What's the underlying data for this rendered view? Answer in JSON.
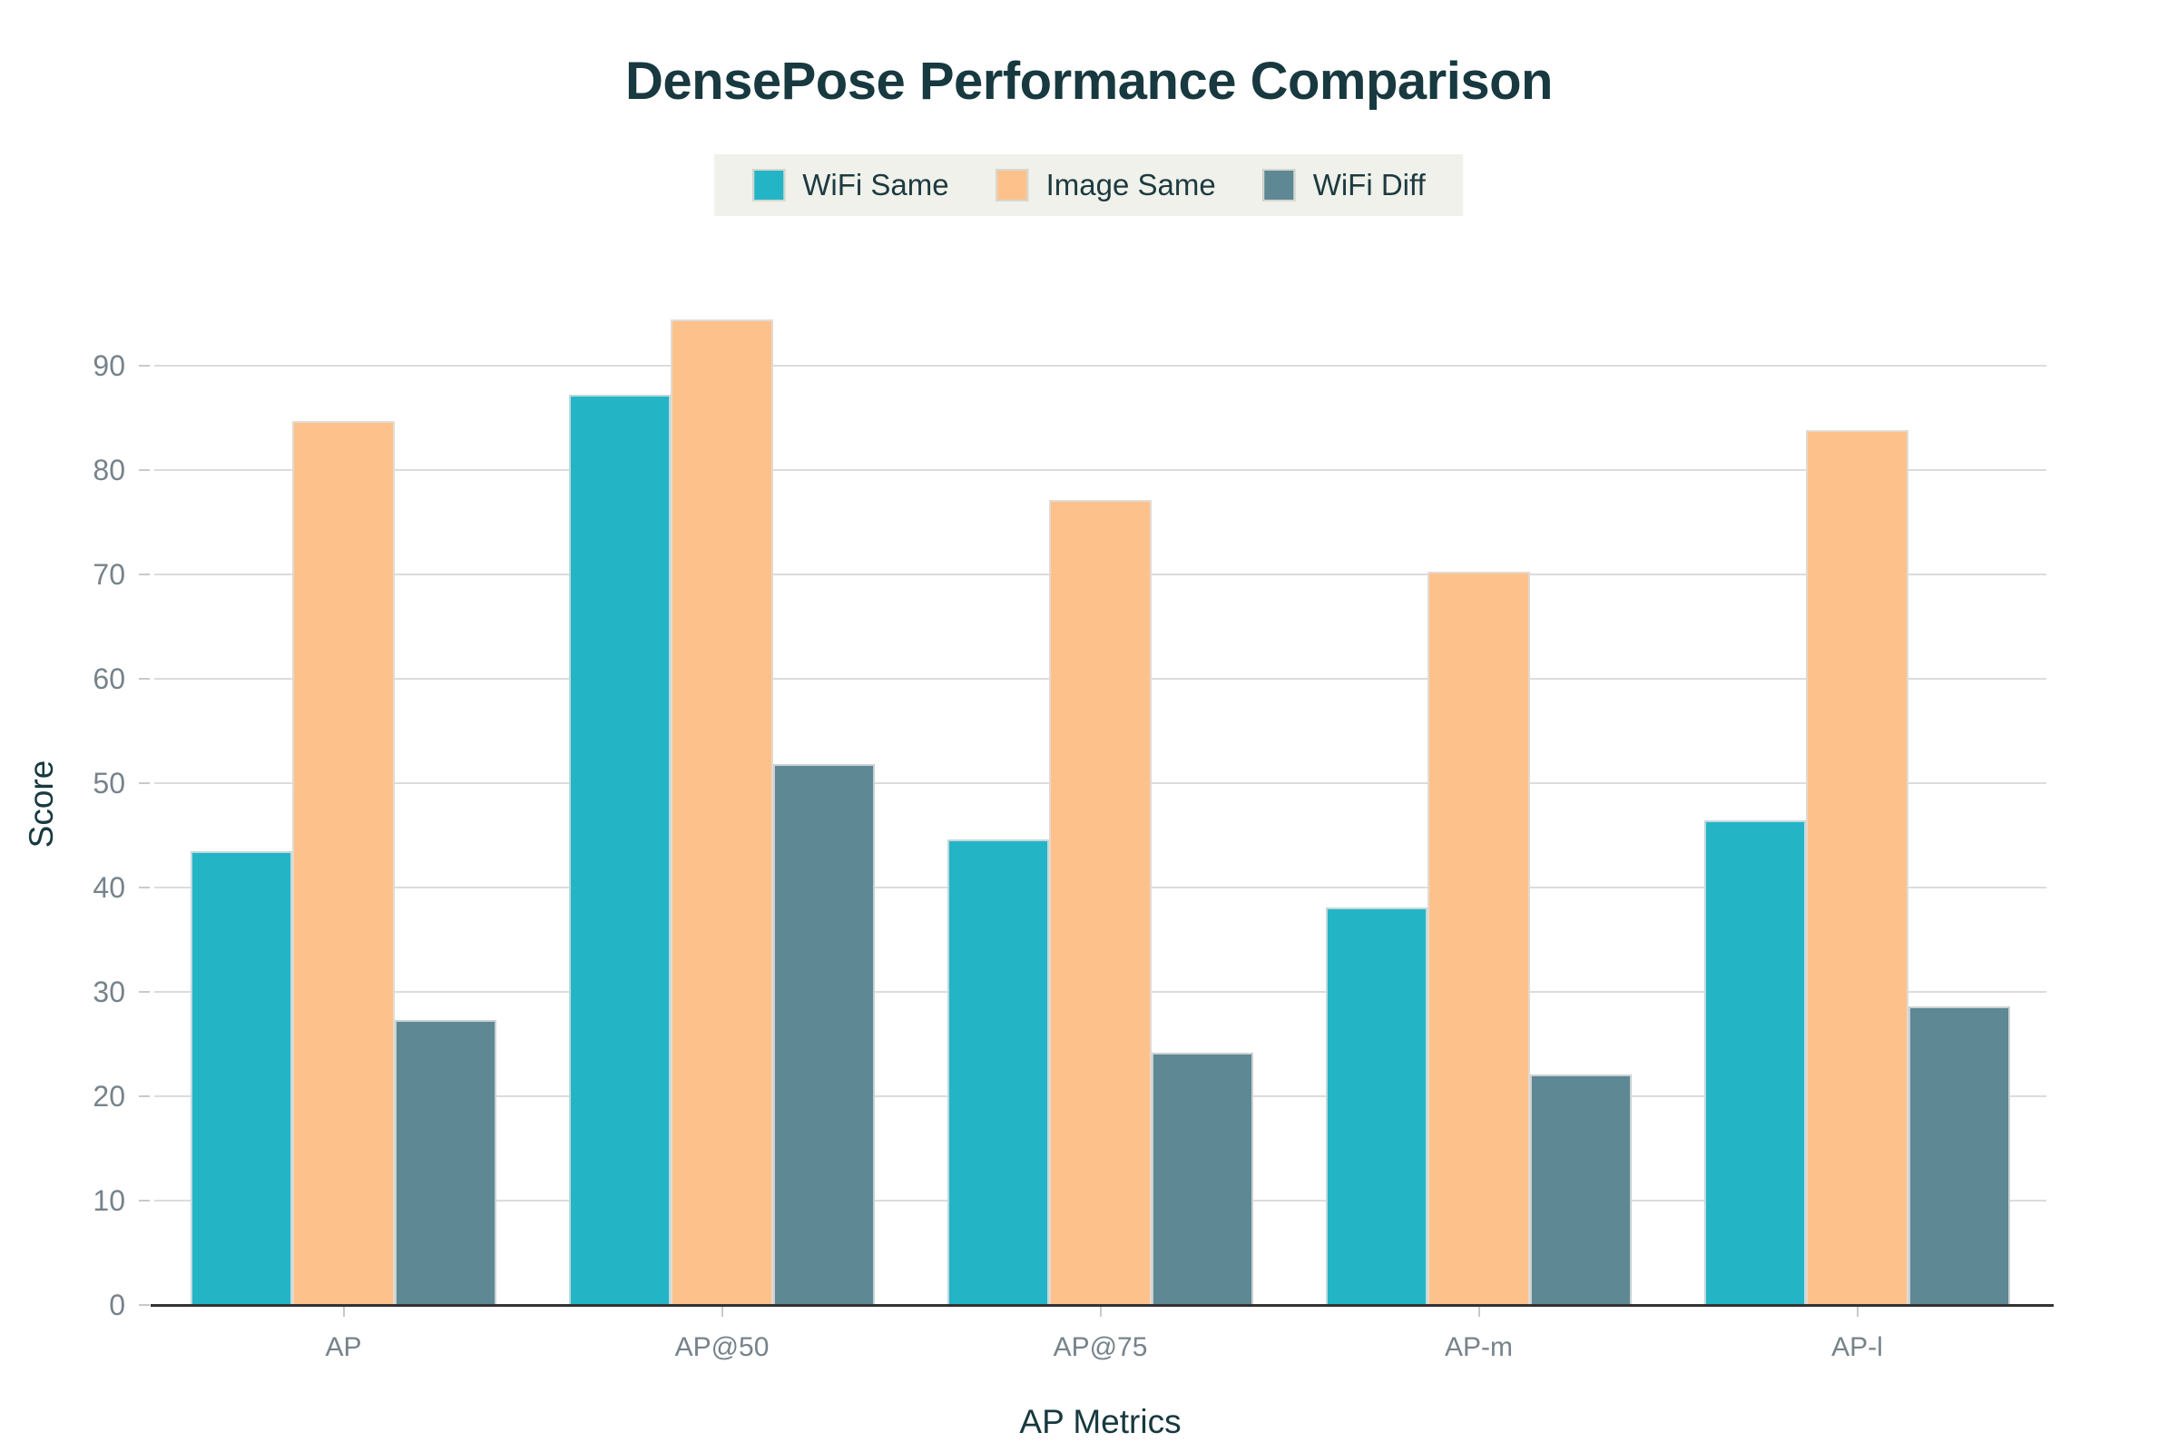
{
  "chart_data": {
    "type": "bar",
    "title": "DensePose Performance Comparison",
    "xlabel": "AP Metrics",
    "ylabel": "Score",
    "categories": [
      "AP",
      "AP@50",
      "AP@75",
      "AP-m",
      "AP-l"
    ],
    "series": [
      {
        "name": "WiFi Same",
        "color": "#23b5c6",
        "values": [
          43.5,
          87.2,
          44.6,
          38.1,
          46.4
        ]
      },
      {
        "name": "Image Same",
        "color": "#fdc28c",
        "values": [
          84.7,
          94.4,
          77.1,
          70.3,
          83.8
        ]
      },
      {
        "name": "WiFi Diff",
        "color": "#5d8894",
        "values": [
          27.3,
          51.8,
          24.2,
          22.1,
          28.6
        ]
      }
    ],
    "ylim": [
      0,
      96
    ],
    "yticks": [
      0,
      10,
      20,
      30,
      40,
      50,
      60,
      70,
      80,
      90
    ],
    "grid": true,
    "legend_position": "top",
    "colors": {
      "title_text": "#17393f",
      "tick_text": "#76838b",
      "gridline": "#dcdcdc",
      "axis_line": "#333333",
      "legend_background": "#eff1ea",
      "bar_edge": "#dedede"
    }
  }
}
